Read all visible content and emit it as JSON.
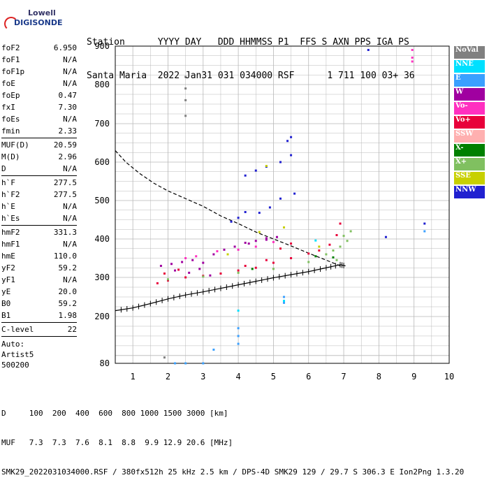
{
  "logo": {
    "line1": "Lowell",
    "line2": "DIGISONDE"
  },
  "header": {
    "labels": "Station      YYYY DAY   DDD HHMMSS P1  FFS S AXN PPS IGA PS",
    "values": "Santa Maria  2022 Jan31 031 034000 RSF      1 711 100 03+ 36"
  },
  "params_group1": [
    {
      "key": "foF2",
      "value": "6.950"
    },
    {
      "key": "foF1",
      "value": "N/A"
    },
    {
      "key": "foF1p",
      "value": "N/A"
    },
    {
      "key": "foE",
      "value": "N/A"
    },
    {
      "key": "foEp",
      "value": "0.47"
    },
    {
      "key": "fxI",
      "value": "7.30"
    },
    {
      "key": "foEs",
      "value": "N/A"
    },
    {
      "key": "fmin",
      "value": "2.33"
    }
  ],
  "params_group2": [
    {
      "key": "MUF(D)",
      "value": "20.59"
    },
    {
      "key": "M(D)",
      "value": "2.96"
    },
    {
      "key": "D",
      "value": "N/A"
    }
  ],
  "params_group3": [
    {
      "key": "h`F",
      "value": "277.5"
    },
    {
      "key": "h`F2",
      "value": "277.5"
    },
    {
      "key": "h`E",
      "value": "N/A"
    },
    {
      "key": "h`Es",
      "value": "N/A"
    }
  ],
  "params_group4": [
    {
      "key": "hmF2",
      "value": "331.3"
    },
    {
      "key": "hmF1",
      "value": "N/A"
    },
    {
      "key": "hmE",
      "value": "110.0"
    },
    {
      "key": "yF2",
      "value": "59.2"
    },
    {
      "key": "yF1",
      "value": "N/A"
    },
    {
      "key": "yE",
      "value": "20.0"
    },
    {
      "key": "B0",
      "value": "59.2"
    },
    {
      "key": "B1",
      "value": "1.98"
    }
  ],
  "params_group5": [
    {
      "key": "C-level",
      "value": "22"
    }
  ],
  "auto": {
    "line1": "Auto:",
    "line2": "Artist5",
    "line3": "500200"
  },
  "legend": [
    {
      "label": "NoVal",
      "color": "#808080"
    },
    {
      "label": "NNE",
      "color": "#00e0ff"
    },
    {
      "label": "E",
      "color": "#3aa0ff"
    },
    {
      "label": "W",
      "color": "#a000a0"
    },
    {
      "label": "Vo-",
      "color": "#ff30c0"
    },
    {
      "label": "Vo+",
      "color": "#e8003a"
    },
    {
      "label": "SSW",
      "color": "#ffb0b0"
    },
    {
      "label": "X-",
      "color": "#008000"
    },
    {
      "label": "X+",
      "color": "#80c060"
    },
    {
      "label": "SSE",
      "color": "#c8d000"
    },
    {
      "label": "NNW",
      "color": "#2020d0"
    }
  ],
  "footer": {
    "line1": "D     100  200  400  600  800 1000 1500 3000 [km]",
    "line2": "MUF   7.3  7.3  7.6  8.1  8.8  9.9 12.9 20.6 [MHz]",
    "line3": "SMK29_2022031034000.RSF / 380fx512h 25 kHz 2.5 km / DPS-4D SMK29 129 / 29.7 S 306.3 E Ion2Png 1.3.20"
  },
  "chart_data": {
    "type": "scatter",
    "xlim": [
      0.5,
      10
    ],
    "ylim": [
      80,
      900
    ],
    "x_ticks": [
      "1",
      "2",
      "3",
      "4",
      "5",
      "6",
      "7",
      "8",
      "9",
      "10"
    ],
    "y_ticks": [
      "80",
      "200",
      "300",
      "400",
      "500",
      "600",
      "700",
      "800",
      "900"
    ],
    "y_tick_values": [
      80,
      200,
      300,
      400,
      500,
      600,
      700,
      800,
      900
    ],
    "profile_curve": [
      [
        0.5,
        630
      ],
      [
        0.8,
        600
      ],
      [
        1.2,
        570
      ],
      [
        1.6,
        545
      ],
      [
        2,
        525
      ],
      [
        2.5,
        505
      ],
      [
        3,
        485
      ],
      [
        3.5,
        460
      ],
      [
        4,
        440
      ],
      [
        4.5,
        418
      ],
      [
        5,
        400
      ],
      [
        5.5,
        382
      ],
      [
        6,
        363
      ],
      [
        6.5,
        345
      ],
      [
        6.9,
        330
      ]
    ],
    "trace_curve": [
      [
        0.5,
        215
      ],
      [
        1,
        222
      ],
      [
        1.5,
        233
      ],
      [
        2,
        245
      ],
      [
        2.5,
        255
      ],
      [
        3,
        263
      ],
      [
        3.5,
        272
      ],
      [
        4,
        281
      ],
      [
        4.5,
        290
      ],
      [
        5,
        299
      ],
      [
        5.5,
        307
      ],
      [
        6,
        315
      ],
      [
        6.5,
        325
      ],
      [
        6.9,
        333
      ],
      [
        7.05,
        330
      ]
    ],
    "echo_groups": [
      {
        "name": "Vo+",
        "color": "#e8003a",
        "points": [
          [
            1.7,
            285
          ],
          [
            2,
            292
          ],
          [
            2.5,
            300
          ],
          [
            3,
            304
          ],
          [
            3.5,
            310
          ],
          [
            4,
            318
          ],
          [
            4.5,
            325
          ],
          [
            5,
            338
          ],
          [
            5.5,
            350
          ],
          [
            6,
            362
          ],
          [
            6.3,
            370
          ],
          [
            6.6,
            385
          ],
          [
            6.8,
            410
          ],
          [
            6.9,
            440
          ],
          [
            1.9,
            310
          ],
          [
            2.3,
            320
          ],
          [
            4.2,
            330
          ],
          [
            4.8,
            345
          ],
          [
            5.2,
            375
          ],
          [
            5.5,
            388
          ]
        ]
      },
      {
        "name": "W",
        "color": "#a000a0",
        "points": [
          [
            1.8,
            330
          ],
          [
            2.1,
            335
          ],
          [
            2.4,
            340
          ],
          [
            2.7,
            345
          ],
          [
            3,
            338
          ],
          [
            3.3,
            360
          ],
          [
            2.2,
            318
          ],
          [
            2.6,
            312
          ],
          [
            4.2,
            390
          ],
          [
            4.5,
            395
          ],
          [
            4.8,
            398
          ],
          [
            5.1,
            405
          ],
          [
            3.6,
            372
          ],
          [
            3.9,
            380
          ],
          [
            3.2,
            305
          ],
          [
            2.9,
            322
          ],
          [
            4.3,
            388
          ],
          [
            4.8,
            402
          ]
        ]
      },
      {
        "name": "NNW",
        "color": "#2020d0",
        "points": [
          [
            4.2,
            565
          ],
          [
            4.5,
            578
          ],
          [
            4.8,
            588
          ],
          [
            5.2,
            600
          ],
          [
            5.5,
            618
          ],
          [
            5.2,
            505
          ],
          [
            5.6,
            518
          ],
          [
            4.9,
            482
          ],
          [
            4.6,
            468
          ],
          [
            5.4,
            655
          ],
          [
            5.5,
            665
          ],
          [
            3.8,
            445
          ],
          [
            4,
            455
          ],
          [
            4.2,
            470
          ],
          [
            7.7,
            890
          ],
          [
            8.2,
            405
          ],
          [
            9.3,
            440
          ]
        ]
      },
      {
        "name": "X+",
        "color": "#80c060",
        "points": [
          [
            6.5,
            360
          ],
          [
            6.7,
            370
          ],
          [
            6.9,
            380
          ],
          [
            7.1,
            395
          ],
          [
            7.2,
            420
          ],
          [
            2,
            295
          ],
          [
            3,
            302
          ],
          [
            4,
            312
          ],
          [
            5,
            322
          ],
          [
            6,
            340
          ],
          [
            6.8,
            345
          ],
          [
            7,
            408
          ]
        ]
      },
      {
        "name": "Vo-",
        "color": "#ff30c0",
        "points": [
          [
            4,
            372
          ],
          [
            4.5,
            380
          ],
          [
            5,
            392
          ],
          [
            2.5,
            350
          ],
          [
            2.8,
            355
          ],
          [
            3.4,
            368
          ],
          [
            8.95,
            870
          ],
          [
            8.95,
            890
          ],
          [
            8.95,
            860
          ]
        ]
      },
      {
        "name": "E",
        "color": "#3aa0ff",
        "points": [
          [
            4,
            130
          ],
          [
            4,
            150
          ],
          [
            4,
            170
          ],
          [
            5.3,
            235
          ],
          [
            5.3,
            250
          ],
          [
            2.2,
            80
          ],
          [
            2.5,
            80
          ],
          [
            3,
            80
          ],
          [
            3.3,
            115
          ],
          [
            9.3,
            420
          ]
        ]
      },
      {
        "name": "NoVal",
        "color": "#808080",
        "points": [
          [
            2.5,
            720
          ],
          [
            2.5,
            760
          ],
          [
            2.5,
            790
          ],
          [
            2.5,
            820
          ],
          [
            1.9,
            95
          ]
        ]
      },
      {
        "name": "SSE",
        "color": "#c8d000",
        "points": [
          [
            4.8,
            590
          ],
          [
            5.3,
            430
          ],
          [
            6.3,
            380
          ],
          [
            3.7,
            360
          ],
          [
            4.6,
            418
          ]
        ]
      },
      {
        "name": "X-",
        "color": "#008000",
        "points": [
          [
            6.2,
            355
          ],
          [
            6.7,
            352
          ],
          [
            4.4,
            322
          ]
        ]
      },
      {
        "name": "NNE",
        "color": "#00e0ff",
        "points": [
          [
            5.3,
            240
          ],
          [
            4,
            215
          ],
          [
            6.2,
            396
          ]
        ]
      }
    ]
  }
}
